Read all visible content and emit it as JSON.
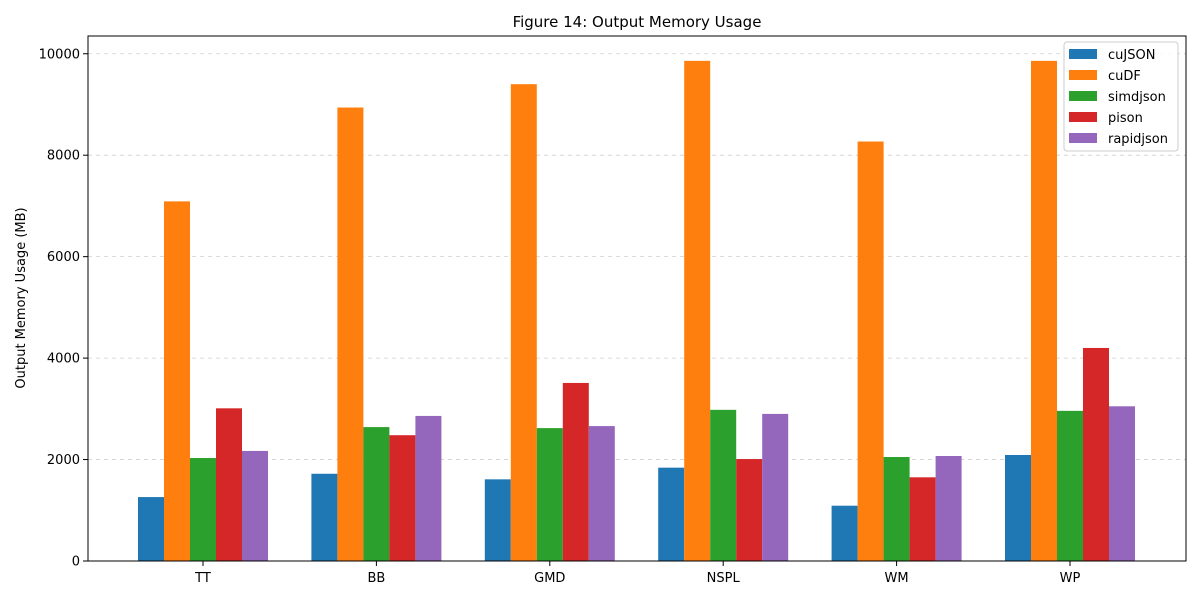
{
  "chart_data": {
    "type": "bar",
    "title": "Figure 14: Output Memory Usage",
    "xlabel": "",
    "ylabel": "Output Memory Usage (MB)",
    "ylim": [
      0,
      10350
    ],
    "yticks": [
      0,
      2000,
      4000,
      6000,
      8000,
      10000
    ],
    "grid": "y-dashed",
    "legend_position": "top-right",
    "categories": [
      "TT",
      "BB",
      "GMD",
      "NSPL",
      "WM",
      "WP"
    ],
    "series": [
      {
        "name": "cuJSON",
        "color": "#1f77b4",
        "values": [
          1260,
          1720,
          1610,
          1840,
          1090,
          2090
        ]
      },
      {
        "name": "cuDF",
        "color": "#ff7f0e",
        "values": [
          7090,
          8940,
          9400,
          9860,
          8270,
          9860
        ]
      },
      {
        "name": "simdjson",
        "color": "#2ca02c",
        "values": [
          2030,
          2640,
          2620,
          2980,
          2050,
          2960
        ]
      },
      {
        "name": "pison",
        "color": "#d62728",
        "values": [
          3010,
          2480,
          3510,
          2010,
          1650,
          4200
        ]
      },
      {
        "name": "rapidjson",
        "color": "#9467bd",
        "values": [
          2170,
          2860,
          2660,
          2900,
          2070,
          3050
        ]
      }
    ]
  }
}
